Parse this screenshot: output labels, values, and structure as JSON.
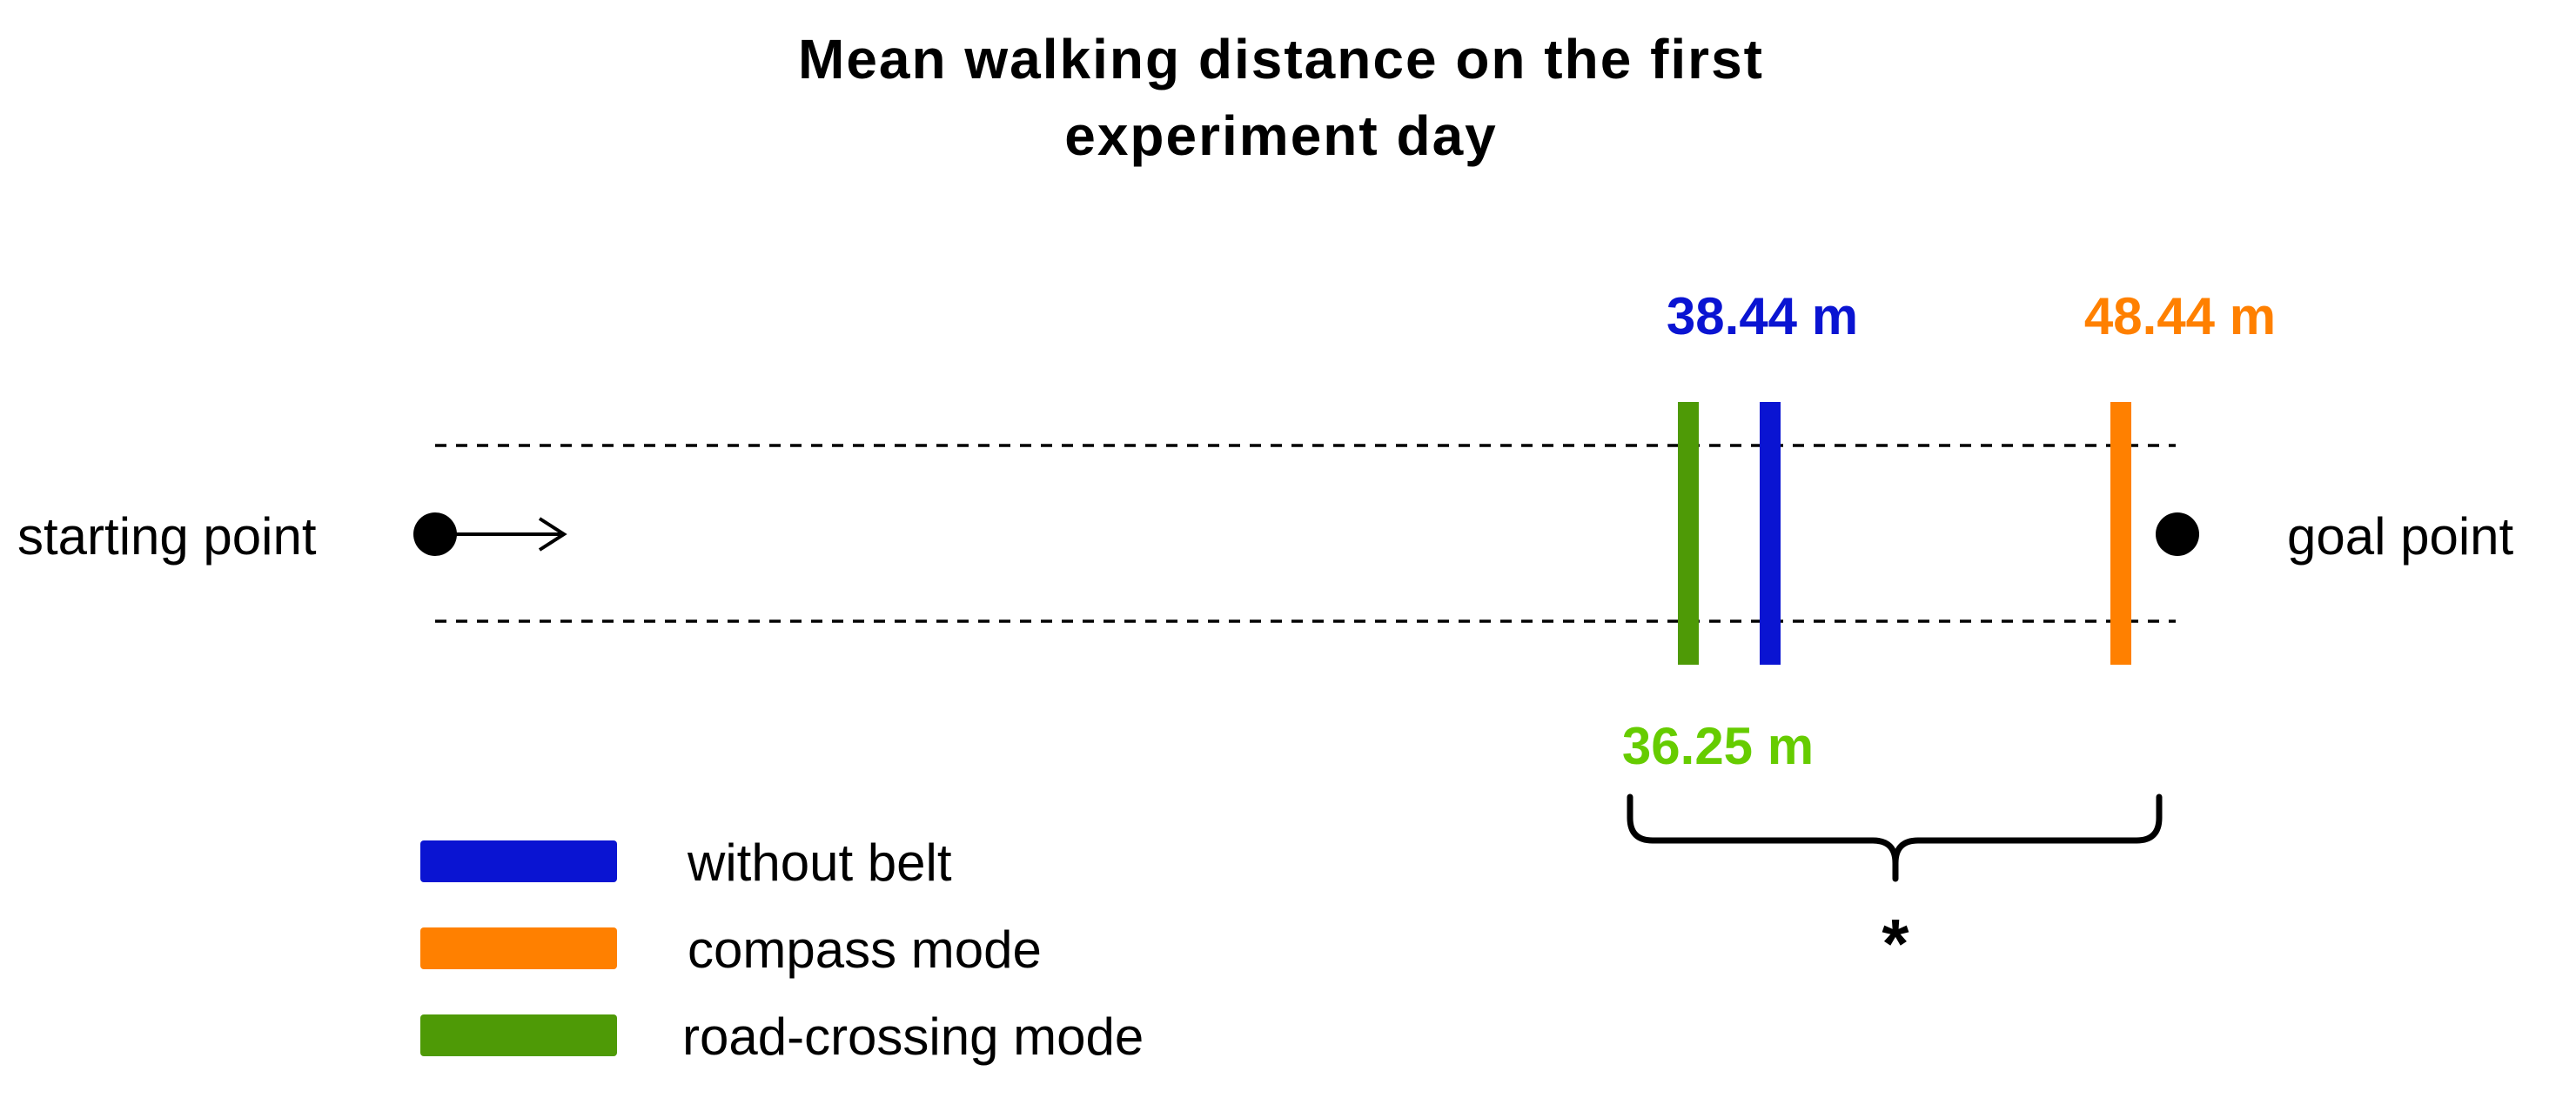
{
  "title_lines": [
    "Mean walking distance on the first",
    "experiment day"
  ],
  "labels": {
    "start": "starting point",
    "goal": "goal point",
    "significance": "*"
  },
  "markers": [
    {
      "name": "road-crossing",
      "value_label": "36.25 m",
      "bar_color": "#4e9a06",
      "label_color": "#66cc00"
    },
    {
      "name": "without-belt",
      "value_label": "38.44 m",
      "bar_color": "#0a14d2",
      "label_color": "#0a14d2"
    },
    {
      "name": "compass",
      "value_label": "48.44 m",
      "bar_color": "#ff8000",
      "label_color": "#ff8000"
    }
  ],
  "legend": [
    {
      "label": "without belt",
      "color": "#0a14d2"
    },
    {
      "label": "compass mode",
      "color": "#ff8000"
    },
    {
      "label": "road-crossing mode",
      "color": "#4e9a06"
    }
  ]
}
